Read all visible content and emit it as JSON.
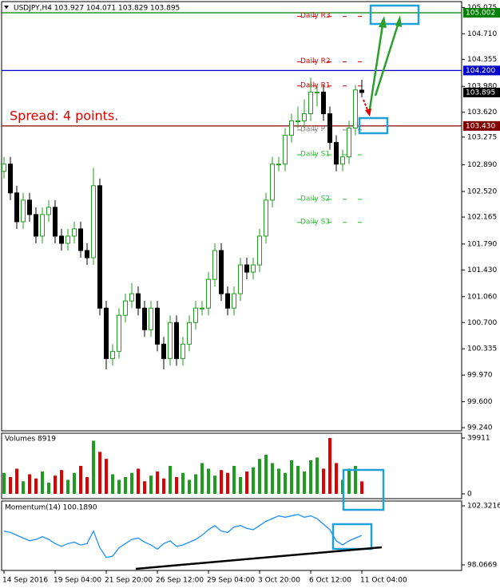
{
  "chart_data": {
    "type": "candlestick",
    "title": "USDJPY,H4 103.927 104.071 103.829 103.895",
    "annotation": "Spread: 4 points.",
    "categories": [
      "14 Sep 2016",
      null,
      null,
      null,
      null,
      null,
      null,
      null,
      "19 Sep 04:00",
      null,
      null,
      null,
      null,
      null,
      null,
      null,
      "21 Sep 20:00",
      null,
      null,
      null,
      null,
      null,
      null,
      null,
      "26 Sep 12:00",
      null,
      null,
      null,
      null,
      null,
      null,
      null,
      "29 Sep 04:00",
      null,
      null,
      null,
      null,
      null,
      null,
      null,
      "3 Oct 20:00",
      null,
      null,
      null,
      null,
      null,
      null,
      null,
      "6 Oct 12:00",
      null,
      null,
      null,
      null,
      null,
      null,
      null,
      "11 Oct 04:00"
    ],
    "open": [
      102.8,
      102.9,
      102.5,
      102.1,
      102.4,
      102.2,
      101.9,
      102.2,
      102.3,
      101.9,
      101.8,
      101.9,
      102.0,
      101.7,
      101.6,
      102.6,
      100.9,
      100.2,
      100.3,
      100.8,
      101.0,
      101.1,
      100.9,
      100.6,
      100.9,
      100.4,
      100.2,
      100.7,
      100.2,
      100.4,
      100.7,
      100.9,
      100.9,
      101.3,
      101.7,
      101.1,
      100.9,
      101.1,
      101.5,
      101.4,
      101.5,
      101.9,
      102.4,
      102.9,
      102.9,
      103.3,
      103.5,
      103.5,
      103.6,
      103.9,
      103.9,
      103.6,
      103.2,
      102.9,
      103.0,
      103.4,
      103.927
    ],
    "high": [
      103.0,
      103.0,
      102.6,
      102.5,
      102.5,
      102.3,
      102.3,
      102.4,
      102.4,
      102.0,
      102.0,
      102.1,
      102.1,
      101.8,
      102.85,
      102.7,
      101.0,
      100.4,
      100.9,
      101.1,
      101.25,
      101.2,
      101.0,
      101.0,
      101.0,
      100.5,
      100.8,
      100.8,
      100.5,
      100.8,
      101.0,
      101.0,
      101.4,
      101.8,
      101.8,
      101.2,
      101.2,
      101.6,
      101.6,
      101.6,
      102.0,
      102.5,
      103.0,
      103.0,
      103.4,
      103.6,
      103.7,
      103.8,
      104.1,
      104.0,
      104.0,
      103.7,
      103.3,
      103.1,
      103.5,
      104.0,
      104.071
    ],
    "low": [
      102.7,
      102.4,
      102.0,
      102.0,
      102.1,
      101.8,
      101.8,
      102.1,
      101.8,
      101.7,
      101.7,
      101.8,
      101.6,
      101.5,
      101.5,
      100.8,
      100.05,
      100.1,
      100.2,
      100.7,
      100.9,
      100.8,
      100.5,
      100.5,
      100.3,
      100.05,
      100.1,
      100.1,
      100.1,
      100.3,
      100.6,
      100.8,
      100.8,
      101.2,
      101.0,
      100.8,
      100.8,
      101.0,
      101.3,
      101.3,
      101.4,
      101.8,
      102.3,
      102.8,
      102.8,
      103.2,
      103.4,
      103.4,
      103.5,
      103.7,
      103.5,
      103.1,
      102.8,
      102.8,
      102.9,
      103.3,
      103.829
    ],
    "close": [
      102.9,
      102.5,
      102.1,
      102.4,
      102.2,
      101.9,
      102.2,
      102.3,
      101.9,
      101.8,
      101.9,
      102.0,
      101.7,
      101.6,
      102.6,
      100.9,
      100.2,
      100.3,
      100.8,
      101.0,
      101.1,
      100.9,
      100.6,
      100.9,
      100.4,
      100.2,
      100.7,
      100.2,
      100.4,
      100.7,
      100.9,
      100.9,
      101.3,
      101.7,
      101.1,
      100.9,
      101.1,
      101.5,
      101.4,
      101.5,
      101.9,
      102.4,
      102.9,
      102.9,
      103.3,
      103.5,
      103.5,
      103.6,
      103.9,
      103.9,
      103.6,
      103.2,
      102.9,
      103.0,
      103.4,
      103.93,
      103.895
    ],
    "up_color": "#1f9d1f",
    "down_color": "#000000",
    "ylim": [
      99.196,
      105.157
    ],
    "yticks": [
      {
        "value": 105.075,
        "label": "105.075"
      },
      {
        "value": 104.71,
        "label": "104.710"
      },
      {
        "value": 104.355,
        "label": "104.355"
      },
      {
        "value": 103.98,
        "label": "103.980"
      },
      {
        "value": 103.62,
        "label": "103.620"
      },
      {
        "value": 103.275,
        "label": "103.275"
      },
      {
        "value": 102.89,
        "label": "102.890"
      },
      {
        "value": 102.52,
        "label": "102.520"
      },
      {
        "value": 102.165,
        "label": "102.165"
      },
      {
        "value": 101.79,
        "label": "101.790"
      },
      {
        "value": 101.43,
        "label": "101.430"
      },
      {
        "value": 101.06,
        "label": "101.060"
      },
      {
        "value": 100.7,
        "label": "100.700"
      },
      {
        "value": 100.335,
        "label": "100.335"
      },
      {
        "value": 99.97,
        "label": "99.970"
      },
      {
        "value": 99.6,
        "label": "99.600"
      },
      {
        "value": 99.24,
        "label": "99.240"
      }
    ],
    "levels": [
      {
        "value": 105.002,
        "label": "105.002",
        "color": "#008000"
      },
      {
        "value": 104.2,
        "label": "104.200",
        "color": "#0000c8"
      },
      {
        "value": 103.43,
        "label": "103.430",
        "color": "#800000"
      },
      {
        "value": 103.895,
        "label": "103.895",
        "color": "#000000"
      }
    ],
    "pivots": [
      {
        "name": "Daily R3",
        "value": 104.95,
        "color": "#cc0000"
      },
      {
        "name": "Daily R2",
        "value": 104.32,
        "color": "#cc0000"
      },
      {
        "name": "Daily R1",
        "value": 103.985,
        "color": "#cc0000"
      },
      {
        "name": "Daily P",
        "value": 103.375,
        "color": "#808080"
      },
      {
        "name": "Daily S1",
        "value": 103.03,
        "color": "#2eb82e"
      },
      {
        "name": "Daily S2",
        "value": 102.41,
        "color": "#2eb82e"
      },
      {
        "name": "Daily S3",
        "value": 102.09,
        "color": "#2eb82e"
      }
    ],
    "volume": {
      "label": "Volumes 8919",
      "up_color": "#1f9d1f",
      "down_color": "#e00000",
      "values": [
        15000,
        12000,
        18000,
        9000,
        14000,
        11000,
        16000,
        8000,
        13000,
        17000,
        10000,
        15000,
        20000,
        12000,
        38000,
        30000,
        25000,
        14000,
        10000,
        12000,
        15000,
        18000,
        9000,
        13000,
        16000,
        11000,
        20000,
        12000,
        15000,
        10000,
        14000,
        22000,
        18000,
        13000,
        17000,
        15000,
        20000,
        12000,
        16000,
        19000,
        25000,
        28000,
        22000,
        18000,
        15000,
        24000,
        20000,
        16000,
        24000,
        26000,
        18000,
        39911,
        22000,
        10000,
        18000,
        20000,
        8919
      ],
      "ylim": [
        -3421,
        43332
      ],
      "yticks": [
        39911,
        0
      ]
    },
    "momentum": {
      "label": "Momentum(14) 100.1890",
      "color": "#1e90ff",
      "values": [
        100.5,
        100.4,
        100.2,
        100.0,
        99.8,
        99.9,
        100.1,
        99.9,
        99.6,
        99.4,
        99.6,
        99.7,
        99.5,
        99.6,
        100.5,
        99.3,
        98.6,
        98.7,
        99.3,
        99.6,
        99.9,
        100.0,
        99.7,
        99.5,
        99.2,
        99.6,
        99.8,
        99.4,
        99.5,
        99.7,
        99.9,
        100.2,
        100.6,
        100.9,
        100.5,
        100.4,
        100.8,
        100.9,
        100.7,
        100.6,
        100.9,
        101.2,
        101.4,
        101.6,
        101.5,
        101.6,
        101.7,
        101.5,
        101.6,
        101.4,
        101.0,
        100.6,
        99.8,
        99.5,
        99.8,
        100.0,
        100.189
      ],
      "ylim": [
        97.664,
        102.667
      ],
      "yticks": [
        {
          "value": 102.3216,
          "label": "102.3216"
        },
        {
          "value": 98.0669,
          "label": "98.0669"
        }
      ]
    }
  }
}
